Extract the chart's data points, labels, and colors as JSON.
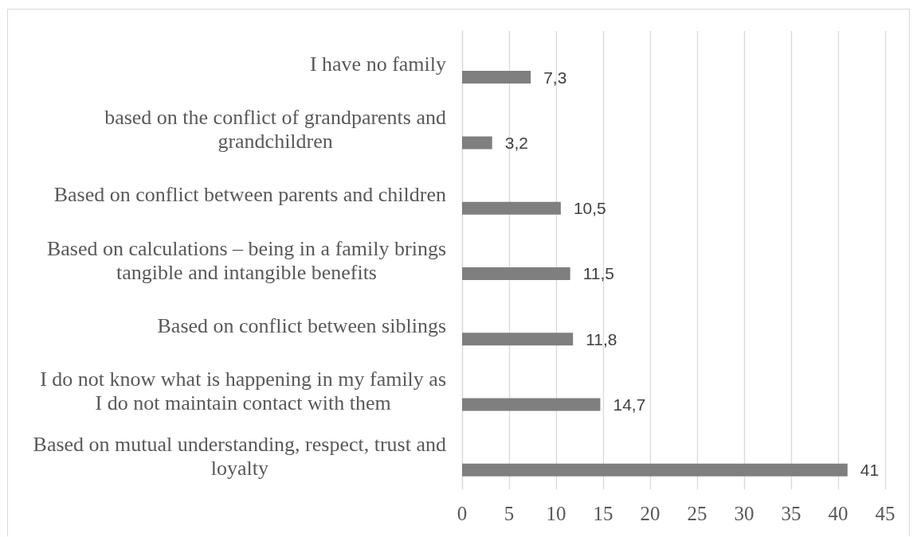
{
  "chart_data": {
    "type": "bar",
    "orientation": "horizontal",
    "categories": [
      "I have no family",
      "based on the conflict of grandparents and grandchildren",
      "Based on conflict between parents and children",
      "Based on calculations – being in a family brings tangible and intangible benefits",
      "Based on conflict between siblings",
      "I do not know what is happening in my family as I do not maintain contact with them",
      "Based on mutual understanding, respect, trust and loyalty"
    ],
    "values": [
      7.3,
      3.2,
      10.5,
      11.5,
      11.8,
      14.7,
      41
    ],
    "color": "#7f7f7f",
    "value_labels": [
      "7,3",
      "3,2",
      "10,5",
      "11,5",
      "11,8",
      "14,7",
      "41"
    ],
    "xlim": [
      0,
      45
    ],
    "xticks": [
      0,
      5,
      10,
      15,
      20,
      25,
      30,
      35,
      40,
      45
    ],
    "grid": "x"
  }
}
